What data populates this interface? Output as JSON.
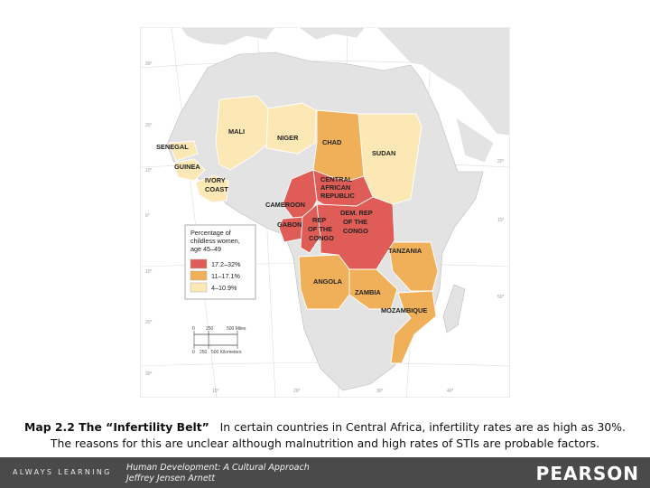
{
  "map": {
    "countries": [
      {
        "name": "MALI",
        "category": "4–10.9%"
      },
      {
        "name": "NIGER",
        "category": "4–10.9%"
      },
      {
        "name": "CHAD",
        "category": "11–17.1%"
      },
      {
        "name": "SUDAN",
        "category": "4–10.9%"
      },
      {
        "name": "SENEGAL",
        "category": "4–10.9%"
      },
      {
        "name": "GUINEA",
        "category": "4–10.9%"
      },
      {
        "name": "IVORY",
        "category": "4–10.9%"
      },
      {
        "name": "COAST",
        "category": "4–10.9%"
      },
      {
        "name": "CENTRAL",
        "category": "17.2–32%"
      },
      {
        "name": "AFRICAN",
        "category": "17.2–32%"
      },
      {
        "name": "REPUBLIC",
        "category": "17.2–32%"
      },
      {
        "name": "CAMEROON",
        "category": "17.2–32%"
      },
      {
        "name": "GABON",
        "category": "17.2–32%"
      },
      {
        "name": "REP",
        "category": "17.2–32%"
      },
      {
        "name": "OF THE",
        "category": "17.2–32%"
      },
      {
        "name": "CONGO",
        "category": "17.2–32%"
      },
      {
        "name": "DEM. REP",
        "category": "17.2–32%"
      },
      {
        "name": "OF THE ",
        "category": "17.2–32%"
      },
      {
        "name": "CONGO ",
        "category": "17.2–32%"
      },
      {
        "name": "TANZANIA",
        "category": "11–17.1%"
      },
      {
        "name": "ANGOLA",
        "category": "11–17.1%"
      },
      {
        "name": "ZAMBIA",
        "category": "11–17.1%"
      },
      {
        "name": "MOZAMBIQUE",
        "category": "11–17.1%"
      }
    ],
    "legend": {
      "title_lines": [
        "Percentage of",
        "childless women,",
        "age 45–49"
      ],
      "items": [
        {
          "label": "17.2–32%",
          "color": "#e05c57"
        },
        {
          "label": "11–17.1%",
          "color": "#f0b05a"
        },
        {
          "label": "4–10.9%",
          "color": "#fbe8b4"
        }
      ]
    },
    "scale": {
      "miles": [
        "0",
        "250",
        "500 Miles"
      ],
      "km": [
        "0",
        "250",
        "500 Kilometers"
      ]
    },
    "grid_labels": [
      "30°",
      "20°",
      "10°",
      "0°",
      "10°",
      "20°",
      "30°",
      "10°",
      "20°",
      "30°",
      "40°",
      "50°",
      "20°",
      "10°"
    ],
    "colors": {
      "sea": "#ffffff",
      "land_other": "#e3e3e3",
      "border": "#ffffff"
    }
  },
  "caption": {
    "label": "Map 2.2   The “Infertility Belt”",
    "text": "In certain countries in Central Africa, infertility rates are as high as 30%. The reasons for this are unclear although malnutrition and high rates of STIs are probable factors."
  },
  "footer": {
    "always_learning": "ALWAYS LEARNING",
    "book_title": "Human Development: A Cultural Approach",
    "author": "Jeffrey Jensen Arnett",
    "publisher": "PEARSON"
  }
}
